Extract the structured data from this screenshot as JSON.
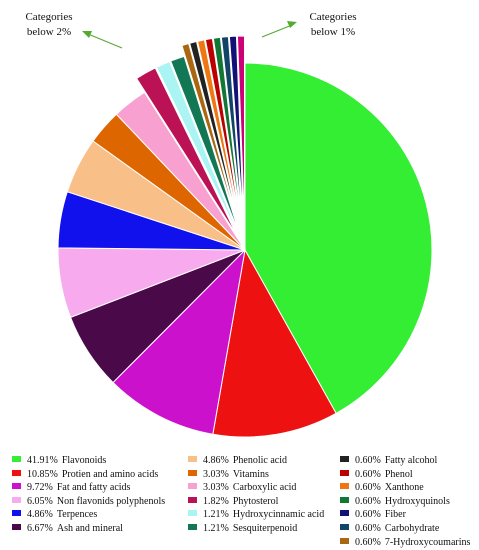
{
  "chart_data": {
    "type": "pie",
    "start_angle_deg": 0,
    "direction": "clockwise",
    "slices": [
      {
        "label": "Flavonoids",
        "value": 41.91,
        "color": "#33ee33",
        "explode": 0
      },
      {
        "label": "Protien and amino acids",
        "value": 10.85,
        "color": "#ee1111",
        "explode": 0
      },
      {
        "label": "Fat and fatty acids",
        "value": 9.72,
        "color": "#cc11cc",
        "explode": 0
      },
      {
        "label": "Ash and mineral",
        "value": 6.67,
        "color": "#4a0a4a",
        "explode": 0
      },
      {
        "label": "Non flavonids polyphenols",
        "value": 6.05,
        "color": "#f8aaee",
        "explode": 0
      },
      {
        "label": "Terpences",
        "value": 4.86,
        "color": "#1111ee",
        "explode": 0
      },
      {
        "label": "Phenolic acid",
        "value": 4.86,
        "color": "#f8c088",
        "explode": 0
      },
      {
        "label": "Vitamins",
        "value": 3.03,
        "color": "#dd6600",
        "explode": 0
      },
      {
        "label": "Carboxylic acid",
        "value": 3.03,
        "color": "#f8a0d0",
        "explode": 0
      },
      {
        "label": "Phytosterol",
        "value": 1.82,
        "color": "#bb1155",
        "explode": 1
      },
      {
        "label": "Hydroxycinnamic acid",
        "value": 1.21,
        "color": "#aaf4f4",
        "explode": 1
      },
      {
        "label": "Sesquiterpenoid",
        "value": 1.21,
        "color": "#117755",
        "explode": 1
      },
      {
        "label": "7-Hydroxycoumarins",
        "value": 0.6,
        "color": "#aa6611",
        "explode": 2
      },
      {
        "label": "Fatty alcohol",
        "value": 0.6,
        "color": "#222222",
        "explode": 2
      },
      {
        "label": "Xanthone",
        "value": 0.6,
        "color": "#ee7711",
        "explode": 2
      },
      {
        "label": "Phenol",
        "value": 0.6,
        "color": "#bb0000",
        "explode": 2
      },
      {
        "label": "Hydroxyquinols",
        "value": 0.6,
        "color": "#117733",
        "explode": 2
      },
      {
        "label": "Carbohydrate",
        "value": 0.6,
        "color": "#114466",
        "explode": 2
      },
      {
        "label": "Fiber",
        "value": 0.6,
        "color": "#111177",
        "explode": 2
      },
      {
        "label": "7-Hydroxycoumarins",
        "value": 0.6,
        "color": "#cc0077",
        "explode": 2
      }
    ],
    "annotations": {
      "left": {
        "line1": "Categories",
        "line2": "below 2%"
      },
      "right": {
        "line1": "Categories",
        "line2": "below 1%"
      }
    },
    "legend": {
      "placement": "bottom",
      "columns": [
        [
          {
            "pct": "41.91%",
            "label": "Flavonoids",
            "color": "#33ee33"
          },
          {
            "pct": "10.85%",
            "label": "Protien and amino acids",
            "color": "#ee1111"
          },
          {
            "pct": "9.72%",
            "label": "Fat and fatty acids",
            "color": "#cc11cc"
          },
          {
            "pct": "6.05%",
            "label": "Non flavonids polyphenols",
            "color": "#f8aaee"
          },
          {
            "pct": "4.86%",
            "label": "Terpences",
            "color": "#1111ee"
          },
          {
            "pct": "6.67%",
            "label": "Ash and mineral",
            "color": "#4a0a4a"
          }
        ],
        [
          {
            "pct": "4.86%",
            "label": "Phenolic acid",
            "color": "#f8c088"
          },
          {
            "pct": "3.03%",
            "label": "Vitamins",
            "color": "#dd6600"
          },
          {
            "pct": "3.03%",
            "label": "Carboxylic acid",
            "color": "#f8a0d0"
          },
          {
            "pct": "1.82%",
            "label": "Phytosterol",
            "color": "#bb1155"
          },
          {
            "pct": "1.21%",
            "label": "Hydroxycinnamic acid",
            "color": "#aaf4f4"
          },
          {
            "pct": "1.21%",
            "label": "Sesquiterpenoid",
            "color": "#117755"
          }
        ],
        [
          {
            "pct": "0.60%",
            "label": "Fatty alcohol",
            "color": "#222222"
          },
          {
            "pct": "0.60%",
            "label": "Phenol",
            "color": "#bb0000"
          },
          {
            "pct": "0.60%",
            "label": "Xanthone",
            "color": "#ee7711"
          },
          {
            "pct": "0.60%",
            "label": "Hydroxyquinols",
            "color": "#117733"
          },
          {
            "pct": "0.60%",
            "label": "Fiber",
            "color": "#111177"
          },
          {
            "pct": "0.60%",
            "label": "Carbohydrate",
            "color": "#114466"
          },
          {
            "pct": "0.60%",
            "label": "7-Hydroxycoumarins",
            "color": "#aa6611"
          }
        ]
      ]
    }
  }
}
